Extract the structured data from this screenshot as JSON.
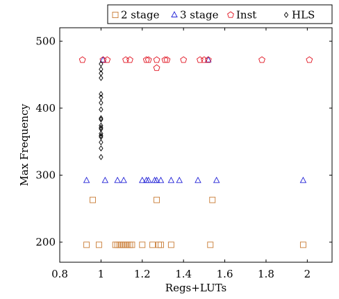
{
  "chart_data": {
    "type": "scatter",
    "title": "",
    "xlabel": "Regs+LUTs",
    "ylabel": "Max Frequency",
    "xlim": [
      0.8,
      2.12
    ],
    "ylim": [
      170,
      520
    ],
    "xticks": [
      0.8,
      1,
      1.2,
      1.4,
      1.6,
      1.8,
      2
    ],
    "xtick_labels": [
      "0.8",
      "1",
      "1.2",
      "1.4",
      "1.6",
      "1.8",
      "2"
    ],
    "yticks": [
      200,
      300,
      400,
      500
    ],
    "ytick_labels": [
      "200",
      "300",
      "400",
      "500"
    ],
    "grid": false,
    "legend_placement": "top, above plot",
    "series": [
      {
        "name": "2 stage",
        "marker": "square",
        "color": "#c87a32",
        "points": [
          [
            0.93,
            196
          ],
          [
            0.96,
            263
          ],
          [
            0.99,
            196
          ],
          [
            1.07,
            196
          ],
          [
            1.08,
            196
          ],
          [
            1.09,
            196
          ],
          [
            1.1,
            196
          ],
          [
            1.11,
            196
          ],
          [
            1.12,
            196
          ],
          [
            1.13,
            196
          ],
          [
            1.14,
            196
          ],
          [
            1.15,
            196
          ],
          [
            1.2,
            196
          ],
          [
            1.25,
            196
          ],
          [
            1.27,
            263
          ],
          [
            1.28,
            196
          ],
          [
            1.29,
            196
          ],
          [
            1.34,
            196
          ],
          [
            1.53,
            196
          ],
          [
            1.54,
            263
          ],
          [
            1.98,
            196
          ]
        ]
      },
      {
        "name": "3 stage",
        "marker": "triangle",
        "color": "#1f1fd6",
        "points": [
          [
            0.93,
            292
          ],
          [
            1.02,
            292
          ],
          [
            1.08,
            292
          ],
          [
            1.11,
            292
          ],
          [
            1.2,
            292
          ],
          [
            1.22,
            292
          ],
          [
            1.23,
            292
          ],
          [
            1.26,
            292
          ],
          [
            1.27,
            292
          ],
          [
            1.29,
            292
          ],
          [
            1.34,
            292
          ],
          [
            1.38,
            292
          ],
          [
            1.47,
            292
          ],
          [
            1.56,
            292
          ],
          [
            1.98,
            292
          ],
          [
            1.01,
            472
          ],
          [
            1.52,
            472
          ]
        ]
      },
      {
        "name": "Inst",
        "marker": "pentagon",
        "color": "#e0101e",
        "points": [
          [
            0.91,
            472
          ],
          [
            1.01,
            472
          ],
          [
            1.03,
            472
          ],
          [
            1.12,
            472
          ],
          [
            1.14,
            472
          ],
          [
            1.22,
            472
          ],
          [
            1.23,
            472
          ],
          [
            1.27,
            472
          ],
          [
            1.27,
            460
          ],
          [
            1.31,
            472
          ],
          [
            1.32,
            472
          ],
          [
            1.4,
            472
          ],
          [
            1.48,
            472
          ],
          [
            1.5,
            472
          ],
          [
            1.52,
            472
          ],
          [
            1.78,
            472
          ],
          [
            2.01,
            472
          ]
        ]
      },
      {
        "name": "HLS",
        "marker": "diamond",
        "color": "#000000",
        "points": [
          [
            1.0,
            466
          ],
          [
            1.0,
            458
          ],
          [
            1.0,
            452
          ],
          [
            1.0,
            445
          ],
          [
            1.0,
            421
          ],
          [
            1.0,
            416
          ],
          [
            1.0,
            408
          ],
          [
            1.0,
            398
          ],
          [
            1.0,
            385
          ],
          [
            1.0,
            383
          ],
          [
            1.0,
            374
          ],
          [
            1.0,
            371
          ],
          [
            1.0,
            369
          ],
          [
            1.0,
            362
          ],
          [
            1.0,
            359
          ],
          [
            1.0,
            357
          ],
          [
            1.0,
            349
          ],
          [
            1.0,
            340
          ],
          [
            1.0,
            327
          ]
        ]
      }
    ]
  }
}
